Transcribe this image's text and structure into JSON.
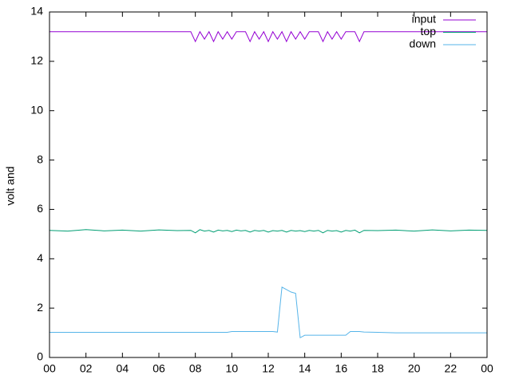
{
  "chart_data": {
    "type": "line",
    "ylabel": "volt and",
    "legend": "top-right",
    "x": [
      0,
      1,
      2,
      3,
      4,
      5,
      6,
      7,
      7.75,
      8,
      8.25,
      8.5,
      8.75,
      9,
      9.25,
      9.5,
      9.75,
      10,
      10.25,
      10.5,
      10.75,
      11,
      11.25,
      11.5,
      11.75,
      12,
      12.25,
      12.5,
      12.75,
      13,
      13.25,
      13.5,
      13.75,
      14,
      14.25,
      14.5,
      14.75,
      15,
      15.25,
      15.5,
      15.75,
      16,
      16.25,
      16.5,
      16.75,
      17,
      17.25,
      18,
      19,
      20,
      21,
      22,
      23,
      24
    ],
    "series": [
      {
        "name": "input",
        "color": "#9400d3",
        "values": [
          13.2,
          13.2,
          13.2,
          13.2,
          13.2,
          13.2,
          13.2,
          13.2,
          13.2,
          12.8,
          13.2,
          12.9,
          13.2,
          12.8,
          13.2,
          12.9,
          13.2,
          12.9,
          13.2,
          13.2,
          13.2,
          12.8,
          13.2,
          12.9,
          13.2,
          12.8,
          13.2,
          12.9,
          13.2,
          12.8,
          13.2,
          12.9,
          13.2,
          12.9,
          13.2,
          13.2,
          13.2,
          12.8,
          13.2,
          12.9,
          13.2,
          12.9,
          13.2,
          13.2,
          13.2,
          12.8,
          13.2,
          13.2,
          13.2,
          13.2,
          13.2,
          13.2,
          13.2,
          13.2
        ]
      },
      {
        "name": "top",
        "color": "#009e73",
        "values": [
          5.15,
          5.12,
          5.18,
          5.13,
          5.16,
          5.12,
          5.17,
          5.14,
          5.15,
          5.05,
          5.18,
          5.12,
          5.15,
          5.08,
          5.16,
          5.13,
          5.15,
          5.1,
          5.16,
          5.13,
          5.15,
          5.08,
          5.15,
          5.12,
          5.15,
          5.08,
          5.14,
          5.12,
          5.15,
          5.08,
          5.15,
          5.12,
          5.14,
          5.1,
          5.15,
          5.12,
          5.15,
          5.05,
          5.15,
          5.12,
          5.14,
          5.08,
          5.15,
          5.12,
          5.16,
          5.05,
          5.15,
          5.14,
          5.16,
          5.12,
          5.17,
          5.13,
          5.16,
          5.15
        ]
      },
      {
        "name": "down",
        "color": "#56b4e9",
        "values": [
          1.02,
          1.02,
          1.02,
          1.02,
          1.02,
          1.02,
          1.02,
          1.02,
          1.02,
          1.02,
          1.02,
          1.02,
          1.02,
          1.02,
          1.02,
          1.02,
          1.02,
          1.05,
          1.05,
          1.05,
          1.05,
          1.05,
          1.05,
          1.05,
          1.05,
          1.05,
          1.05,
          1.03,
          2.85,
          2.75,
          2.65,
          2.6,
          0.8,
          0.9,
          0.9,
          0.9,
          0.9,
          0.9,
          0.9,
          0.9,
          0.9,
          0.9,
          0.9,
          1.05,
          1.05,
          1.05,
          1.03,
          1.02,
          1.0,
          1.0,
          1.0,
          1.0,
          1.0,
          1.0
        ]
      }
    ],
    "xlim": [
      0,
      24
    ],
    "xticks": [
      {
        "value": 0,
        "label": "00"
      },
      {
        "value": 2,
        "label": "02"
      },
      {
        "value": 4,
        "label": "04"
      },
      {
        "value": 6,
        "label": "06"
      },
      {
        "value": 8,
        "label": "08"
      },
      10,
      12,
      14,
      16,
      18,
      20,
      22,
      {
        "value": 24,
        "label": "00"
      }
    ],
    "ylim": [
      0,
      14
    ],
    "yticks": [
      0,
      2,
      4,
      6,
      8,
      10,
      12,
      14
    ],
    "grid": false
  }
}
